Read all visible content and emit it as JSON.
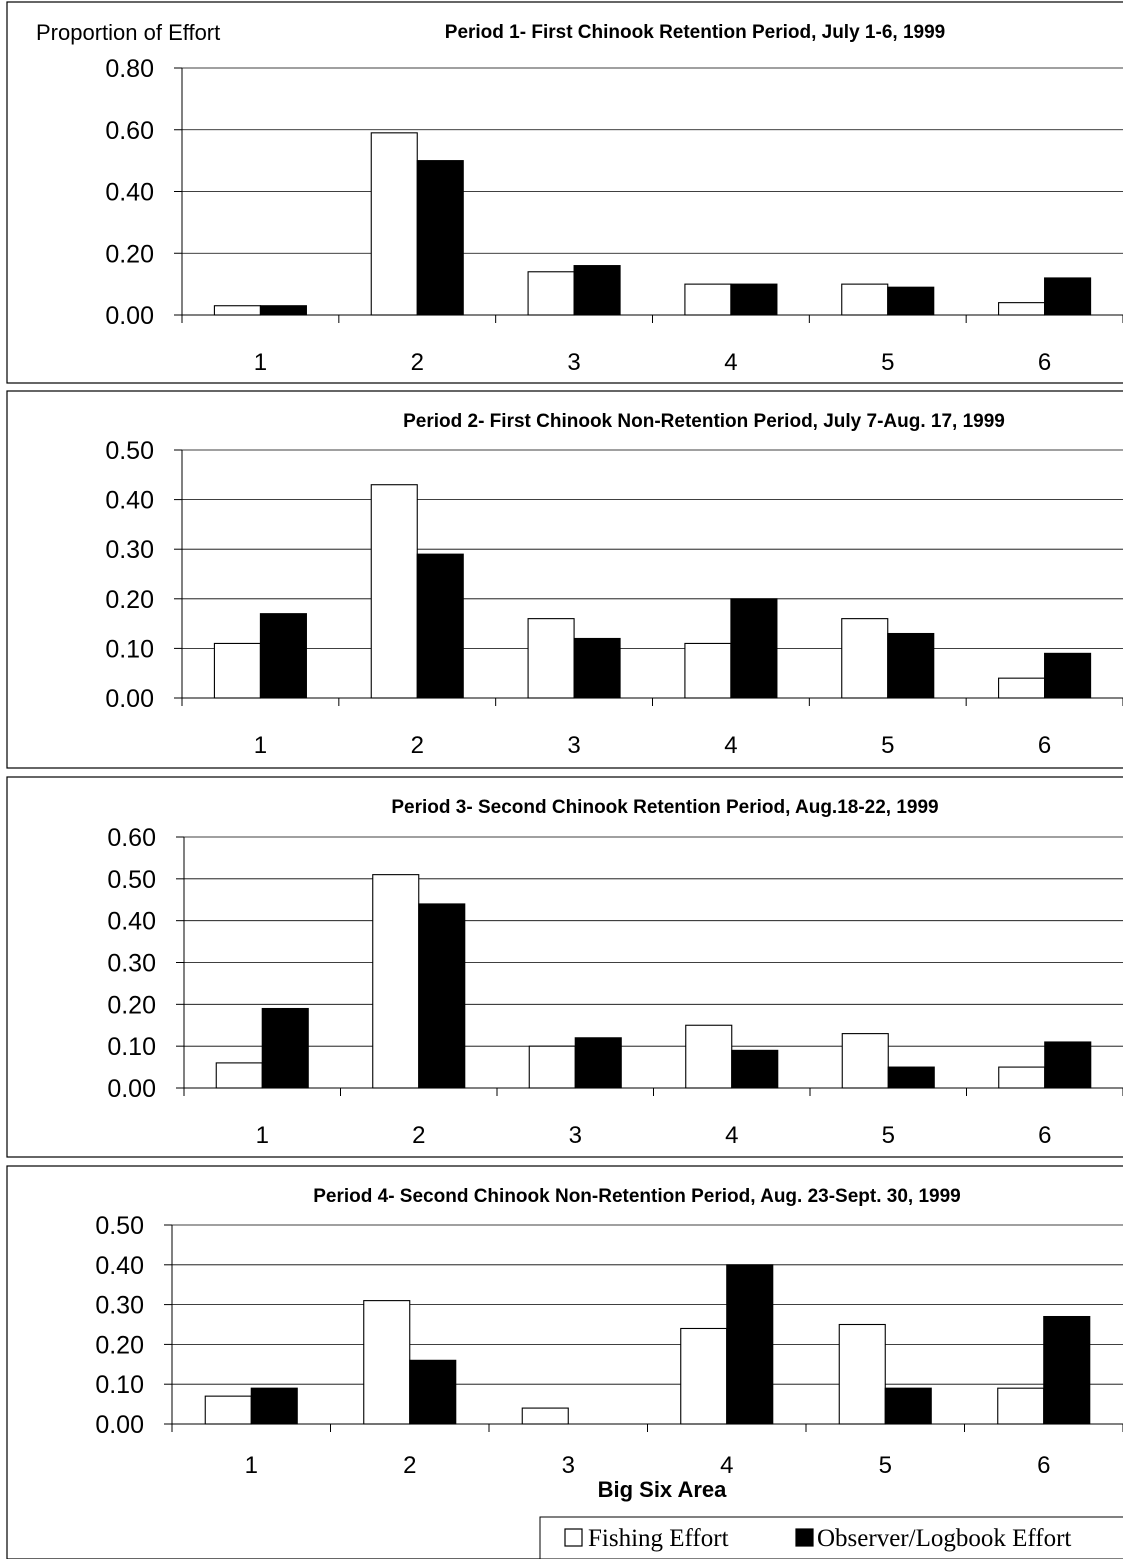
{
  "figure": {
    "y_axis_title": "Proportion of Effort",
    "x_axis_title": "Big Six Area",
    "legend": [
      {
        "label": "Fishing Effort",
        "color": "#ffffff"
      },
      {
        "label": "Observer/Logbook Effort",
        "color": "#000000"
      }
    ]
  },
  "chart_data": [
    {
      "type": "bar",
      "title": "Period 1- First Chinook Retention Period, July 1-6, 1999",
      "ylabel": "Proportion of Effort",
      "xlabel": "",
      "categories": [
        "1",
        "2",
        "3",
        "4",
        "5",
        "6"
      ],
      "ylim": [
        0,
        0.8
      ],
      "yticks": [
        "0.00",
        "0.20",
        "0.40",
        "0.60",
        "0.80"
      ],
      "grid": true,
      "series": [
        {
          "name": "Fishing Effort",
          "color": "#ffffff",
          "values": [
            0.03,
            0.59,
            0.14,
            0.1,
            0.1,
            0.04
          ]
        },
        {
          "name": "Observer/Logbook Effort",
          "color": "#000000",
          "values": [
            0.03,
            0.5,
            0.16,
            0.1,
            0.09,
            0.12
          ]
        }
      ]
    },
    {
      "type": "bar",
      "title": "Period 2- First Chinook Non-Retention Period, July 7-Aug. 17, 1999",
      "ylabel": "",
      "xlabel": "",
      "categories": [
        "1",
        "2",
        "3",
        "4",
        "5",
        "6"
      ],
      "ylim": [
        0,
        0.5
      ],
      "yticks": [
        "0.00",
        "0.10",
        "0.20",
        "0.30",
        "0.40",
        "0.50"
      ],
      "grid": true,
      "series": [
        {
          "name": "Fishing Effort",
          "color": "#ffffff",
          "values": [
            0.11,
            0.43,
            0.16,
            0.11,
            0.16,
            0.04
          ]
        },
        {
          "name": "Observer/Logbook Effort",
          "color": "#000000",
          "values": [
            0.17,
            0.29,
            0.12,
            0.2,
            0.13,
            0.09
          ]
        }
      ]
    },
    {
      "type": "bar",
      "title": "Period 3- Second Chinook Retention Period, Aug.18-22, 1999",
      "ylabel": "",
      "xlabel": "",
      "categories": [
        "1",
        "2",
        "3",
        "4",
        "5",
        "6"
      ],
      "ylim": [
        0,
        0.6
      ],
      "yticks": [
        "0.00",
        "0.10",
        "0.20",
        "0.30",
        "0.40",
        "0.50",
        "0.60"
      ],
      "grid": true,
      "series": [
        {
          "name": "Fishing Effort",
          "color": "#ffffff",
          "values": [
            0.06,
            0.51,
            0.1,
            0.15,
            0.13,
            0.05
          ]
        },
        {
          "name": "Observer/Logbook Effort",
          "color": "#000000",
          "values": [
            0.19,
            0.44,
            0.12,
            0.09,
            0.05,
            0.11
          ]
        }
      ]
    },
    {
      "type": "bar",
      "title": "Period 4- Second Chinook Non-Retention Period, Aug. 23-Sept. 30, 1999",
      "ylabel": "",
      "xlabel": "Big Six Area",
      "categories": [
        "1",
        "2",
        "3",
        "4",
        "5",
        "6"
      ],
      "ylim": [
        0,
        0.5
      ],
      "yticks": [
        "0.00",
        "0.10",
        "0.20",
        "0.30",
        "0.40",
        "0.50"
      ],
      "grid": true,
      "series": [
        {
          "name": "Fishing Effort",
          "color": "#ffffff",
          "values": [
            0.07,
            0.31,
            0.04,
            0.24,
            0.25,
            0.09
          ]
        },
        {
          "name": "Observer/Logbook Effort",
          "color": "#000000",
          "values": [
            0.09,
            0.16,
            0.0,
            0.4,
            0.09,
            0.27
          ]
        }
      ]
    }
  ]
}
